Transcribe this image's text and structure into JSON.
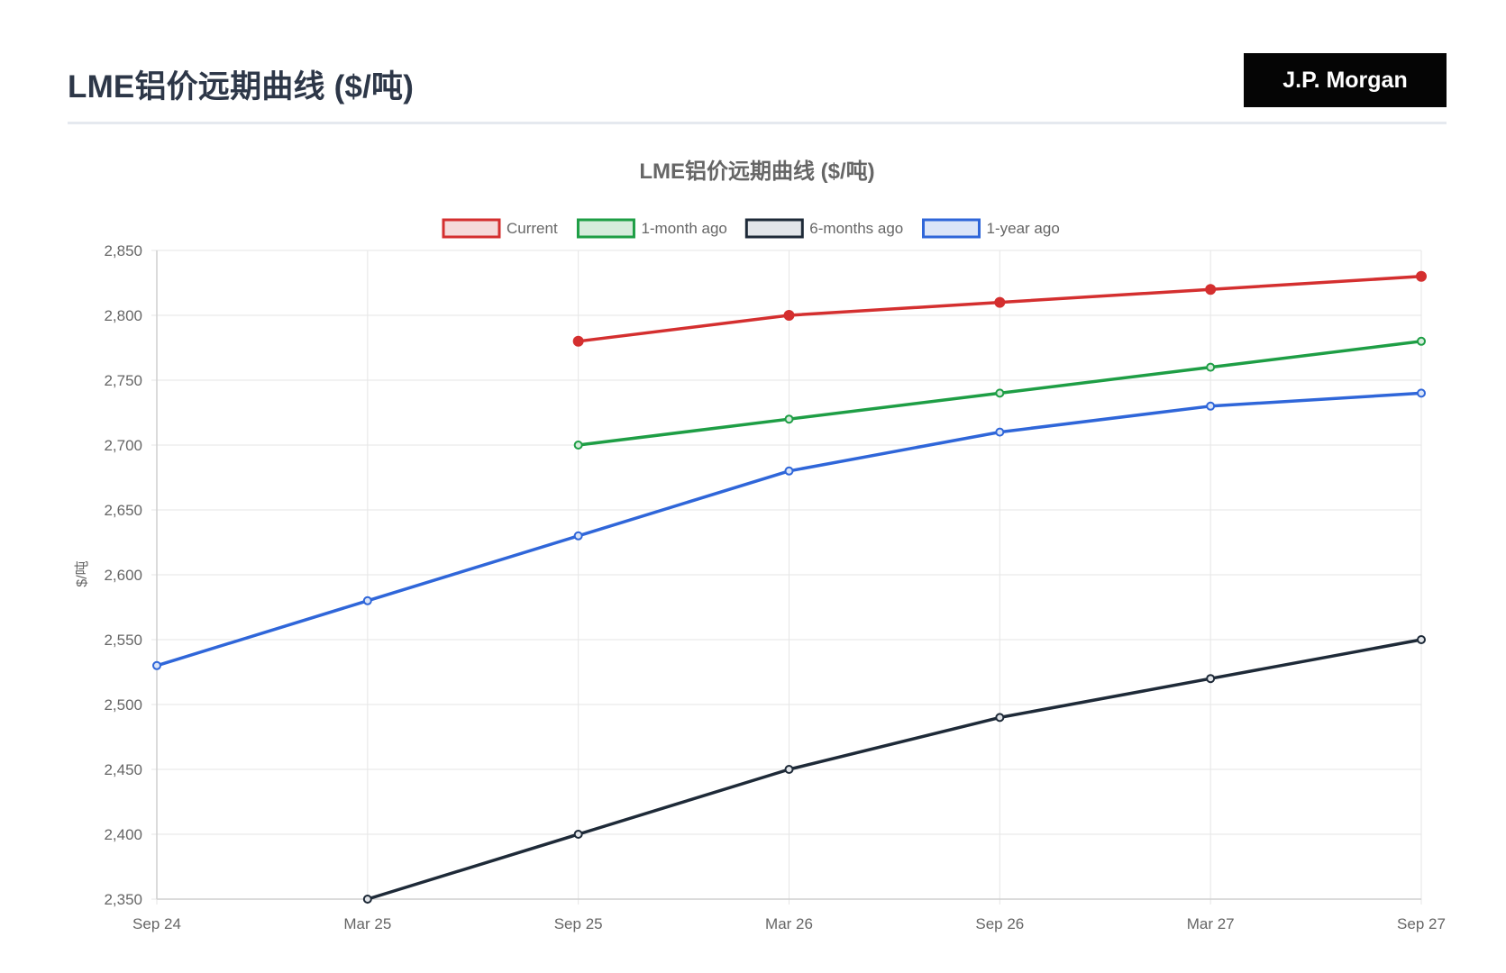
{
  "page": {
    "title": "LME铝价远期曲线 ($/吨)",
    "brand": "J.P. Morgan"
  },
  "chart_data": {
    "type": "line",
    "title": "LME铝价远期曲线 ($/吨)",
    "xlabel": "",
    "ylabel": "$/吨",
    "categories": [
      "Sep 24",
      "Mar 25",
      "Sep 25",
      "Mar 26",
      "Sep 26",
      "Mar 27",
      "Sep 27"
    ],
    "ylim": [
      2350,
      2850
    ],
    "yticks": [
      2850,
      2800,
      2750,
      2700,
      2650,
      2600,
      2550,
      2500,
      2450,
      2400,
      2350
    ],
    "ytick_labels": [
      "2,850",
      "2,800",
      "2,750",
      "2,700",
      "2,650",
      "2,600",
      "2,550",
      "2,500",
      "2,450",
      "2,400",
      "2,350"
    ],
    "grid": true,
    "legend_position": "top-center",
    "series": [
      {
        "name": "Current",
        "color": "#d42f2f",
        "fill": "#f5dada",
        "values": [
          null,
          null,
          2780,
          2800,
          2810,
          2820,
          2830
        ],
        "filled_points": true
      },
      {
        "name": "1-month ago",
        "color": "#1e9e45",
        "fill": "#d6ecdc",
        "values": [
          null,
          null,
          2700,
          2720,
          2740,
          2760,
          2780
        ],
        "filled_points": false
      },
      {
        "name": "6-months ago",
        "color": "#1e2a38",
        "fill": "#e2e5e9",
        "values": [
          null,
          2350,
          2400,
          2450,
          2490,
          2520,
          2550
        ],
        "filled_points": false
      },
      {
        "name": "1-year ago",
        "color": "#2f66d9",
        "fill": "#dbe5f8",
        "values": [
          2530,
          2580,
          2630,
          2680,
          2710,
          2730,
          2740
        ],
        "filled_points": false
      }
    ]
  }
}
